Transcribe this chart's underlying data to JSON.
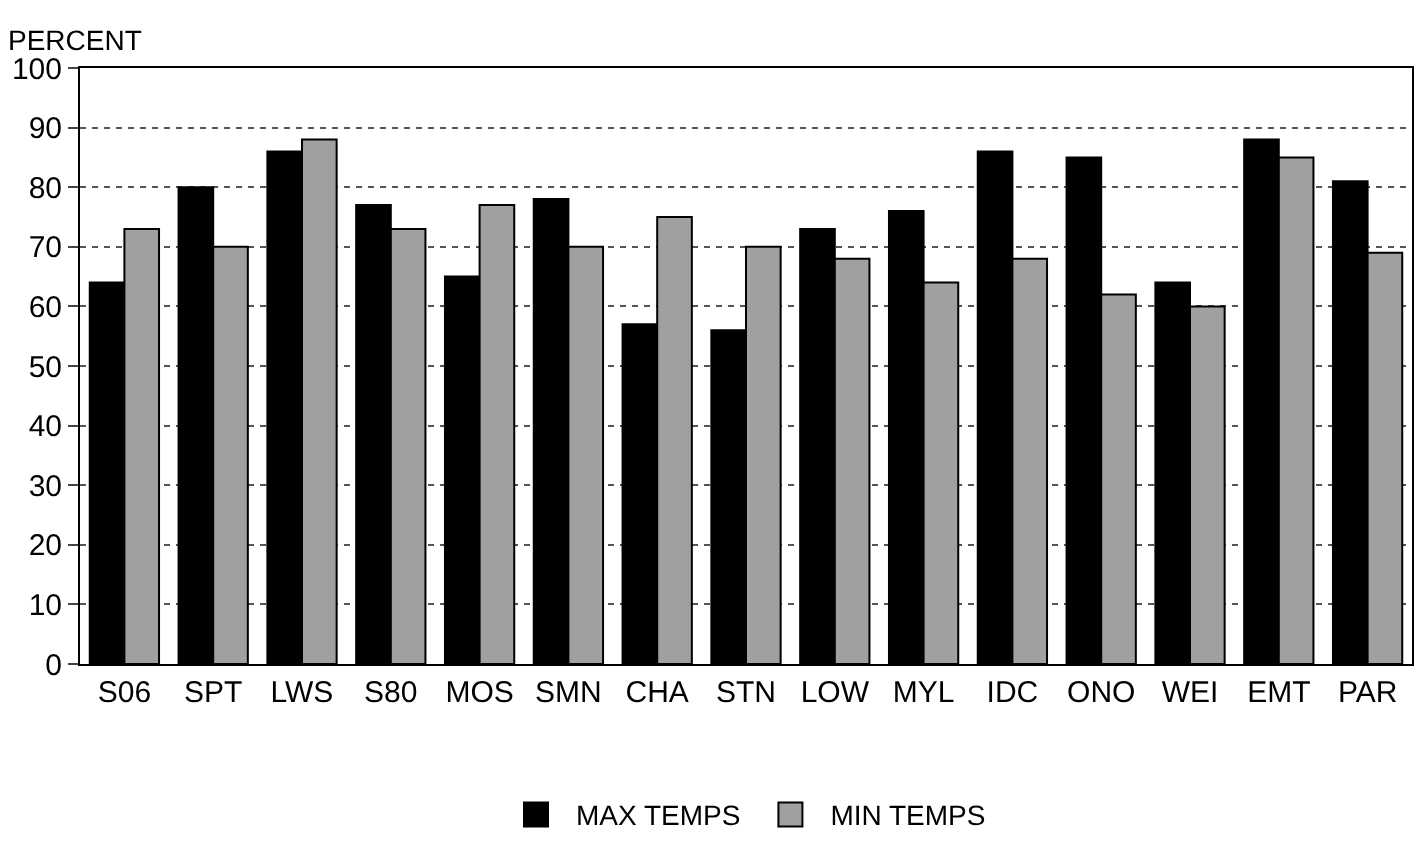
{
  "chart_data": {
    "type": "bar",
    "ylabel": "PERCENT",
    "categories": [
      "S06",
      "SPT",
      "LWS",
      "S80",
      "MOS",
      "SMN",
      "CHA",
      "STN",
      "LOW",
      "MYL",
      "IDC",
      "ONO",
      "WEI",
      "EMT",
      "PAR"
    ],
    "series": [
      {
        "name": "MAX TEMPS",
        "color": "#000000",
        "values": [
          64,
          80,
          86,
          77,
          65,
          78,
          57,
          56,
          73,
          76,
          86,
          85,
          64,
          88,
          81
        ]
      },
      {
        "name": "MIN TEMPS",
        "color": "#a0a0a0",
        "values": [
          73,
          70,
          88,
          73,
          77,
          70,
          75,
          70,
          68,
          64,
          68,
          62,
          60,
          85,
          69
        ]
      }
    ],
    "ylim": [
      0,
      100
    ],
    "yticks": [
      0,
      10,
      20,
      30,
      40,
      50,
      60,
      70,
      80,
      90,
      100
    ],
    "grid": "y",
    "legend": "bottom"
  }
}
